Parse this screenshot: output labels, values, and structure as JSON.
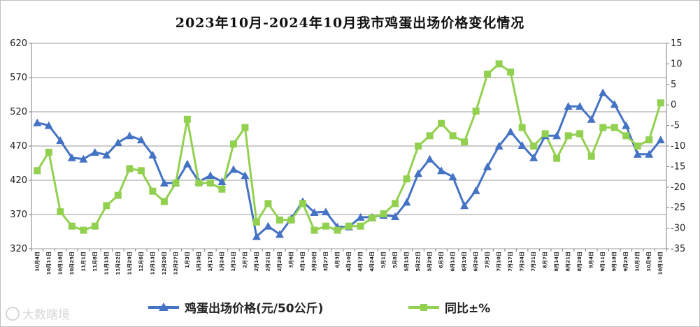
{
  "chart_data": {
    "type": "line",
    "title": "2023年10月-2024年10月我市鸡蛋出场价格变化情况",
    "x": [
      "10月4日",
      "10月11日",
      "10月18日",
      "10月25日",
      "11月1日",
      "11月8日",
      "11月15日",
      "11月22日",
      "11月29日",
      "12月6日",
      "12月13日",
      "12月20日",
      "12月27日",
      "1月3日",
      "1月10日",
      "1月17日",
      "1月24日",
      "1月31日",
      "2月7日",
      "2月14日",
      "2月21日",
      "2月28日",
      "3月6日",
      "3月13日",
      "3月20日",
      "3月27日",
      "4月3日",
      "4月10日",
      "4月17日",
      "4月24日",
      "5月1日",
      "5月8日",
      "5月15日",
      "5月22日",
      "5月29日",
      "6月5日",
      "6月12日",
      "6月19日",
      "6月26日",
      "7月3日",
      "7月10日",
      "7月17日",
      "7月24日",
      "7月31日",
      "8月7日",
      "8月14日",
      "8月21日",
      "8月28日",
      "9月4日",
      "9月11日",
      "9月18日",
      "9月25日",
      "10月2日",
      "10月9日",
      "10月16日"
    ],
    "y_left": {
      "ticks": [
        320,
        370,
        420,
        470,
        520,
        570,
        620
      ],
      "lim": [
        320,
        620
      ]
    },
    "y_right": {
      "ticks": [
        -35,
        -30,
        -25,
        -20,
        -15,
        -10,
        -5,
        0,
        5,
        10,
        15
      ],
      "lim": [
        -35,
        15
      ]
    },
    "grid": true,
    "legend_position": "bottom",
    "series": [
      {
        "name": "鸡蛋出场价格(元/50公斤)",
        "axis": "left",
        "color": "#4472c4",
        "marker": "triangle",
        "values": [
          504,
          500,
          478,
          453,
          451,
          461,
          457,
          475,
          485,
          479,
          457,
          416,
          416,
          444,
          418,
          427,
          418,
          436,
          427,
          338,
          353,
          341,
          364,
          389,
          373,
          374,
          352,
          352,
          366,
          366,
          369,
          367,
          388,
          430,
          451,
          434,
          425,
          383,
          405,
          440,
          470,
          491,
          471,
          453,
          485,
          485,
          528,
          528,
          509,
          548,
          531,
          500,
          458,
          458,
          479
        ]
      },
      {
        "name": "同比±%",
        "axis": "right",
        "color": "#92d050",
        "marker": "square",
        "values": [
          -16,
          -11.5,
          -26,
          -29.5,
          -30.5,
          -29.5,
          -24.5,
          -22,
          -15.5,
          -16,
          -21,
          -23.5,
          -19,
          -3.5,
          -19,
          -19,
          -20.5,
          -9.5,
          -5.5,
          -28.5,
          -24,
          -28,
          -28,
          -24,
          -30.5,
          -29.5,
          -30.5,
          -29.5,
          -29.5,
          -27.5,
          -26.5,
          -24,
          -18,
          -10,
          -7.5,
          -4.5,
          -7.5,
          -9,
          -1.5,
          7.5,
          10,
          8,
          -5.5,
          -10,
          -7,
          -13,
          -7.5,
          -7,
          -12.5,
          -5.5,
          -5.5,
          -7.5,
          -10,
          -8.5,
          0.5
        ]
      }
    ]
  },
  "legend": {
    "price_label": "鸡蛋出场价格(元/50公斤)",
    "yoy_label": "同比±%"
  },
  "watermark": {
    "text": "大数瞎境"
  }
}
